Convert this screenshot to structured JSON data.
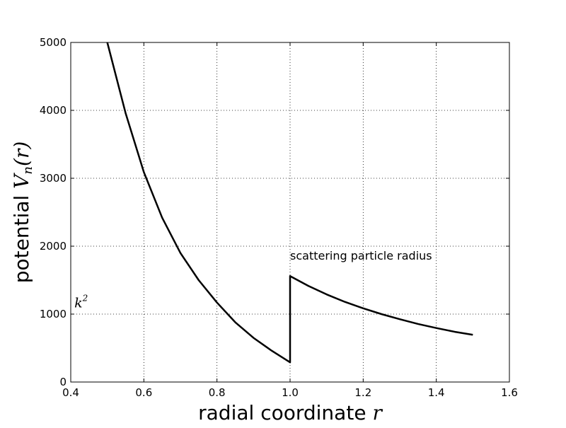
{
  "chart_data": {
    "type": "line",
    "title": "",
    "xlabel": "radial coordinate",
    "xlabel_math": "r",
    "ylabel": "potential",
    "ylabel_math_base": "V",
    "ylabel_math_sub": "n",
    "ylabel_math_arg": "(r)",
    "xlim": [
      0.4,
      1.6
    ],
    "ylim": [
      0,
      5000
    ],
    "xticks": [
      0.4,
      0.6,
      0.8,
      1.0,
      1.2,
      1.4,
      1.6
    ],
    "xtick_labels": [
      "0.4",
      "0.6",
      "0.8",
      "1.0",
      "1.2",
      "1.4",
      "1.6"
    ],
    "yticks": [
      0,
      1000,
      2000,
      3000,
      4000,
      5000
    ],
    "ytick_labels": [
      "0",
      "1000",
      "2000",
      "3000",
      "4000",
      "5000"
    ],
    "grid": true,
    "series": [
      {
        "name": "potential",
        "color": "#000000",
        "x": [
          0.5,
          0.55,
          0.6,
          0.65,
          0.7,
          0.75,
          0.8,
          0.85,
          0.9,
          0.95,
          1.0,
          1.0,
          1.05,
          1.1,
          1.15,
          1.2,
          1.25,
          1.3,
          1.35,
          1.4,
          1.45,
          1.5
        ],
        "y": [
          5000,
          3960,
          3090,
          2420,
          1900,
          1500,
          1170,
          880,
          650,
          460,
          290,
          1560,
          1415,
          1290,
          1180,
          1085,
          1000,
          925,
          855,
          795,
          740,
          695
        ]
      }
    ],
    "annotations": [
      {
        "id": "radius",
        "text": "scattering particle radius",
        "x": 1.0,
        "y": 1800
      },
      {
        "id": "k2",
        "base": "k",
        "sup": "2",
        "x": 0.41,
        "y": 1100
      }
    ]
  }
}
